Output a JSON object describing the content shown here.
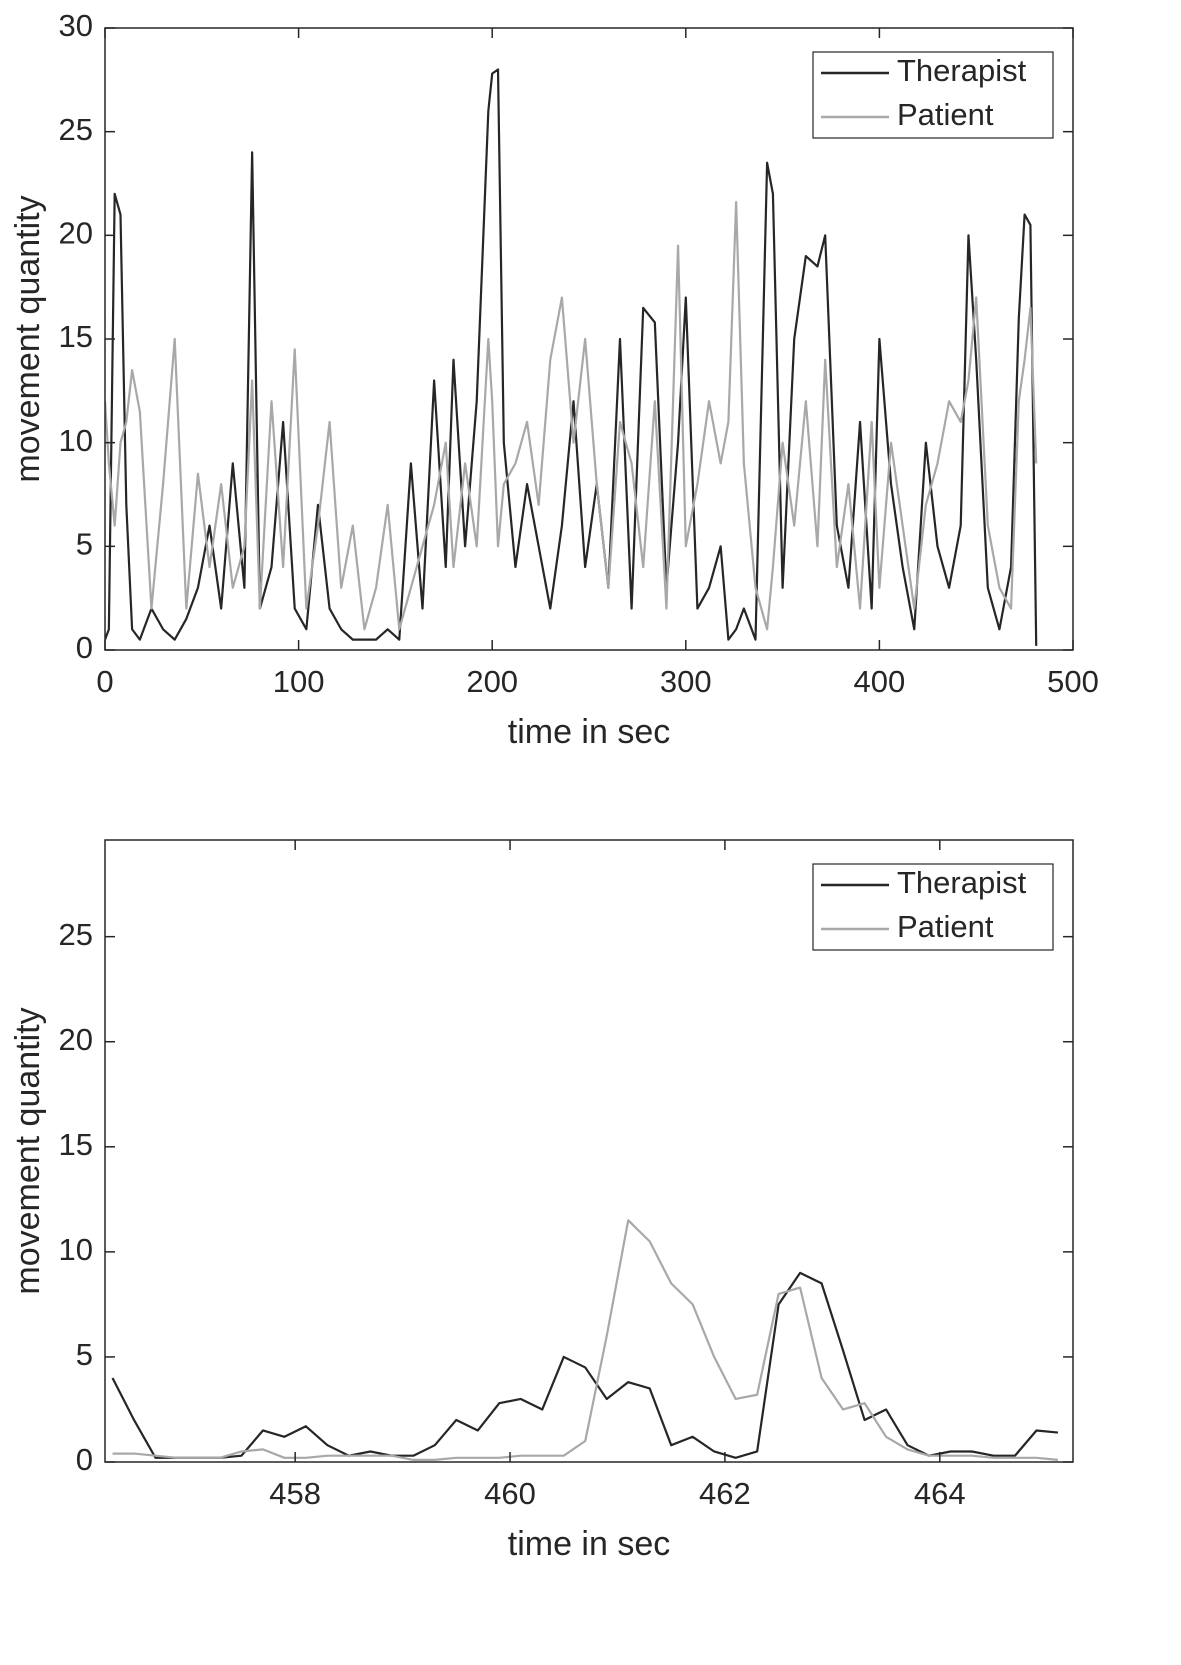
{
  "chart_data": [
    {
      "type": "line",
      "xlabel": "time in sec",
      "ylabel": "movement quantity",
      "legend": "upper right",
      "xlim": [
        0,
        500
      ],
      "ylim": [
        0,
        30
      ],
      "xticks": [
        0,
        100,
        200,
        300,
        400,
        500
      ],
      "yticks": [
        0,
        5,
        10,
        15,
        20,
        25,
        30
      ],
      "x": [
        0,
        2,
        5,
        8,
        11,
        14,
        18,
        24,
        30,
        36,
        42,
        48,
        54,
        60,
        66,
        72,
        76,
        80,
        86,
        92,
        98,
        104,
        110,
        116,
        122,
        128,
        134,
        140,
        146,
        152,
        158,
        164,
        170,
        176,
        180,
        186,
        192,
        198,
        200,
        203,
        206,
        212,
        218,
        224,
        230,
        236,
        242,
        248,
        254,
        260,
        266,
        272,
        278,
        284,
        290,
        296,
        300,
        306,
        312,
        318,
        322,
        326,
        330,
        336,
        342,
        345,
        350,
        356,
        362,
        368,
        372,
        378,
        384,
        390,
        396,
        400,
        406,
        412,
        418,
        424,
        430,
        436,
        442,
        446,
        450,
        456,
        462,
        468,
        472,
        475,
        478,
        481
      ],
      "series": [
        {
          "name": "Therapist",
          "color": "#262626",
          "values": [
            0.5,
            1,
            22,
            21,
            7,
            1,
            0.5,
            2,
            1,
            0.5,
            1.5,
            3,
            6,
            2,
            9,
            3,
            24,
            2,
            4,
            11,
            2,
            1,
            7,
            2,
            1,
            0.5,
            0.5,
            0.5,
            1,
            0.5,
            9,
            2,
            13,
            4,
            14,
            5,
            12,
            26,
            27.8,
            28,
            10,
            4,
            8,
            5,
            2,
            6,
            12,
            4,
            8,
            3,
            15,
            2,
            16.5,
            15.8,
            3,
            10,
            17,
            2,
            3,
            5,
            0.5,
            1,
            2,
            0.5,
            23.5,
            22,
            3,
            15,
            19,
            18.5,
            20,
            6,
            3,
            11,
            2,
            15,
            8,
            4,
            1,
            10,
            5,
            3,
            6,
            20,
            14,
            3,
            1,
            4,
            16,
            21,
            20.5,
            0.2
          ]
        },
        {
          "name": "Patient",
          "color": "#a8a8a8",
          "values": [
            12,
            9,
            6,
            10,
            11,
            13.5,
            11.5,
            2,
            8,
            15,
            2,
            8.5,
            4,
            8,
            3,
            5,
            13,
            2,
            12,
            4,
            14.5,
            2,
            6,
            11,
            3,
            6,
            1,
            3,
            7,
            1,
            3,
            5,
            7,
            10,
            4,
            9,
            5,
            15,
            12,
            5,
            8,
            9,
            11,
            7,
            14,
            17,
            10,
            15,
            8,
            3,
            11,
            9,
            4,
            12,
            2,
            19.5,
            5,
            8,
            12,
            9,
            11,
            21.6,
            9,
            3,
            1,
            4,
            10,
            6,
            12,
            5,
            14,
            4,
            8,
            2,
            11,
            3,
            10,
            6,
            2,
            7,
            9,
            12,
            11,
            13,
            17,
            6,
            3,
            2,
            12,
            14,
            16.5,
            9
          ]
        }
      ]
    },
    {
      "type": "line",
      "xlabel": "time in sec",
      "ylabel": "movement quantity",
      "legend": "upper right",
      "xlim": [
        456.23,
        465.24
      ],
      "ylim": [
        0,
        29.6
      ],
      "xticks": [
        458,
        460,
        462,
        464
      ],
      "yticks": [
        0,
        5,
        10,
        15,
        20,
        25
      ],
      "x": [
        456.3,
        456.5,
        456.7,
        456.9,
        457.1,
        457.3,
        457.5,
        457.7,
        457.9,
        458.1,
        458.3,
        458.5,
        458.7,
        458.9,
        459.1,
        459.3,
        459.5,
        459.7,
        459.9,
        460.1,
        460.3,
        460.5,
        460.7,
        460.9,
        461.1,
        461.3,
        461.5,
        461.7,
        461.9,
        462.1,
        462.3,
        462.5,
        462.7,
        462.9,
        463.1,
        463.3,
        463.5,
        463.7,
        463.9,
        464.1,
        464.3,
        464.5,
        464.7,
        464.9,
        465.1
      ],
      "series": [
        {
          "name": "Therapist",
          "color": "#262626",
          "values": [
            4,
            2,
            0.2,
            0.2,
            0.2,
            0.2,
            0.3,
            1.5,
            1.2,
            1.7,
            0.8,
            0.3,
            0.5,
            0.3,
            0.3,
            0.8,
            2,
            1.5,
            2.8,
            3,
            2.5,
            5,
            4.5,
            3,
            3.8,
            3.5,
            0.8,
            1.2,
            0.5,
            0.2,
            0.5,
            7.5,
            9,
            8.5,
            5.3,
            2,
            2.5,
            0.8,
            0.3,
            0.5,
            0.5,
            0.3,
            0.3,
            1.5,
            1.4
          ]
        },
        {
          "name": "Patient",
          "color": "#a8a8a8",
          "values": [
            0.4,
            0.4,
            0.3,
            0.2,
            0.2,
            0.2,
            0.5,
            0.6,
            0.2,
            0.2,
            0.3,
            0.3,
            0.3,
            0.3,
            0.1,
            0.1,
            0.2,
            0.2,
            0.2,
            0.3,
            0.3,
            0.3,
            1,
            6,
            11.5,
            10.5,
            8.5,
            7.5,
            5,
            3,
            3.2,
            8,
            8.3,
            4,
            2.5,
            2.8,
            1.2,
            0.6,
            0.3,
            0.3,
            0.3,
            0.2,
            0.2,
            0.2,
            0.1
          ]
        }
      ]
    }
  ]
}
